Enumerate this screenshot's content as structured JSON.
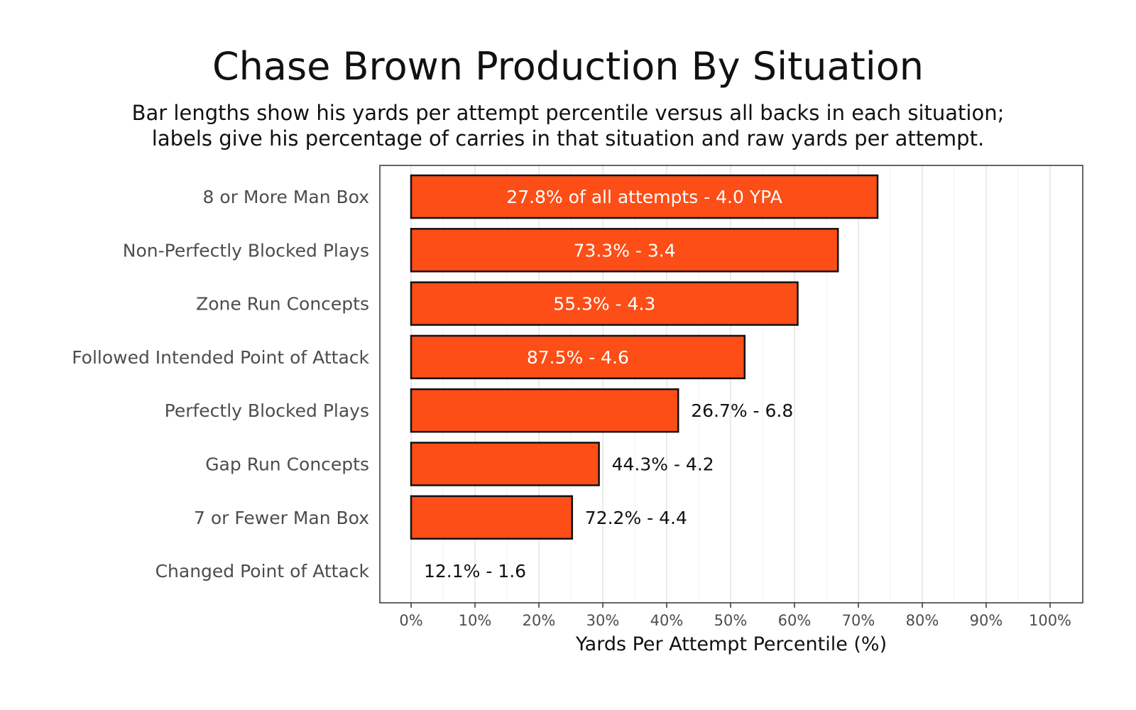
{
  "chart_data": {
    "type": "bar",
    "orientation": "horizontal",
    "title": "Chase Brown Production By Situation",
    "subtitle": [
      "Bar lengths show his yards per attempt percentile versus all backs in each situation;",
      "labels give his percentage of carries in that situation and raw yards per attempt."
    ],
    "xlabel": "Yards Per Attempt Percentile (%)",
    "ylabel": "",
    "xlim": [
      0,
      100
    ],
    "x_ticks": [
      0,
      10,
      20,
      30,
      40,
      50,
      60,
      70,
      80,
      90,
      100
    ],
    "x_tick_labels": [
      "0%",
      "10%",
      "20%",
      "30%",
      "40%",
      "50%",
      "60%",
      "70%",
      "80%",
      "90%",
      "100%"
    ],
    "grid": "vertical",
    "bar_color": "#fc4e16",
    "bar_outline": "#111111",
    "inside_label_color": "#ffffff",
    "outside_label_color": "#111111",
    "categories": [
      "8 or More Man Box",
      "Non-Perfectly Blocked Plays",
      "Zone Run Concepts",
      "Followed Intended Point of Attack",
      "Perfectly Blocked Plays",
      "Gap Run Concepts",
      "7 or Fewer Man Box",
      "Changed Point of Attack"
    ],
    "values": [
      73,
      66.8,
      60.5,
      52.2,
      41.8,
      29.4,
      25.2,
      0
    ],
    "bar_labels": [
      "27.8% of all attempts - 4.0 YPA",
      "73.3% - 3.4",
      "55.3% - 4.3",
      "87.5% - 4.6",
      "26.7% - 6.8",
      "44.3% - 4.2",
      "72.2% - 4.4",
      "12.1% - 1.6"
    ],
    "label_inside": [
      true,
      true,
      true,
      true,
      false,
      false,
      false,
      false
    ]
  }
}
